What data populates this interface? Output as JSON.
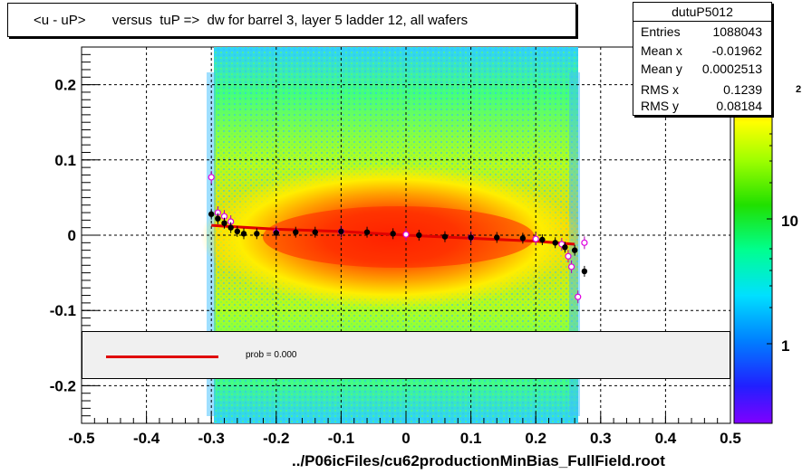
{
  "title": "<u - uP>       versus  tuP =>  dw for barrel 3, layer 5 ladder 12, all wafers",
  "stats": {
    "name": "dutuP5012",
    "rows": [
      {
        "label": "Entries",
        "value": "1088043"
      },
      {
        "label": "Mean x",
        "value": "-0.01962"
      },
      {
        "label": "Mean y",
        "value": "0.0002513"
      },
      {
        "label": "RMS x",
        "value": "0.1239"
      },
      {
        "label": "RMS y",
        "value": "0.08184"
      }
    ]
  },
  "legend": {
    "fit_label": "prob = 0.000"
  },
  "xaxis_title": "../P06icFiles/cu62productionMinBias_FullField.root",
  "chart_data": {
    "type": "heatmap",
    "xlim": [
      -0.5,
      0.5
    ],
    "ylim": [
      -0.25,
      0.25
    ],
    "xticks": [
      -0.5,
      -0.4,
      -0.3,
      -0.2,
      -0.1,
      0,
      0.1,
      0.2,
      0.3,
      0.4,
      0.5
    ],
    "xtick_labels": [
      "-0.5",
      "-0.4",
      "-0.3",
      "-0.2",
      "-0.1",
      "0",
      "0.1",
      "0.2",
      "0.3",
      "0.4",
      "0.5"
    ],
    "yticks": [
      -0.2,
      -0.1,
      0,
      0.1,
      0.2
    ],
    "ytick_labels": [
      "-0.2",
      "-0.1",
      "0",
      "0.1",
      "0.2"
    ],
    "grid": true,
    "colorbar": {
      "labels": [
        "1",
        "10"
      ],
      "top_label_fragment": "2"
    },
    "profile_black": [
      {
        "x": -0.3,
        "y": 0.028
      },
      {
        "x": -0.29,
        "y": 0.022
      },
      {
        "x": -0.28,
        "y": 0.016
      },
      {
        "x": -0.27,
        "y": 0.01
      },
      {
        "x": -0.26,
        "y": 0.005
      },
      {
        "x": -0.25,
        "y": 0.002
      },
      {
        "x": -0.23,
        "y": 0.002
      },
      {
        "x": -0.2,
        "y": 0.003
      },
      {
        "x": -0.17,
        "y": 0.004
      },
      {
        "x": -0.14,
        "y": 0.004
      },
      {
        "x": -0.1,
        "y": 0.005
      },
      {
        "x": -0.06,
        "y": 0.004
      },
      {
        "x": -0.02,
        "y": 0.002
      },
      {
        "x": 0.02,
        "y": 0.0
      },
      {
        "x": 0.06,
        "y": -0.002
      },
      {
        "x": 0.1,
        "y": -0.003
      },
      {
        "x": 0.14,
        "y": -0.003
      },
      {
        "x": 0.18,
        "y": -0.004
      },
      {
        "x": 0.21,
        "y": -0.006
      },
      {
        "x": 0.23,
        "y": -0.01
      },
      {
        "x": 0.245,
        "y": -0.016
      },
      {
        "x": 0.26,
        "y": -0.02
      },
      {
        "x": 0.275,
        "y": -0.048
      }
    ],
    "profile_magenta": [
      {
        "x": -0.3,
        "y": 0.077
      },
      {
        "x": -0.29,
        "y": 0.03
      },
      {
        "x": -0.28,
        "y": 0.025
      },
      {
        "x": -0.27,
        "y": 0.018
      },
      {
        "x": -0.2,
        "y": 0.004
      },
      {
        "x": -0.1,
        "y": 0.005
      },
      {
        "x": 0.0,
        "y": 0.001
      },
      {
        "x": 0.1,
        "y": -0.003
      },
      {
        "x": 0.2,
        "y": -0.005
      },
      {
        "x": 0.24,
        "y": -0.012
      },
      {
        "x": 0.25,
        "y": -0.028
      },
      {
        "x": 0.255,
        "y": -0.042
      },
      {
        "x": 0.265,
        "y": -0.082
      },
      {
        "x": 0.275,
        "y": -0.01
      }
    ],
    "fit_line": [
      {
        "x": -0.3,
        "y": 0.013
      },
      {
        "x": -0.2,
        "y": 0.008
      },
      {
        "x": -0.1,
        "y": 0.005
      },
      {
        "x": 0.0,
        "y": 0.0
      },
      {
        "x": 0.1,
        "y": -0.004
      },
      {
        "x": 0.2,
        "y": -0.008
      },
      {
        "x": 0.26,
        "y": -0.012
      }
    ]
  }
}
